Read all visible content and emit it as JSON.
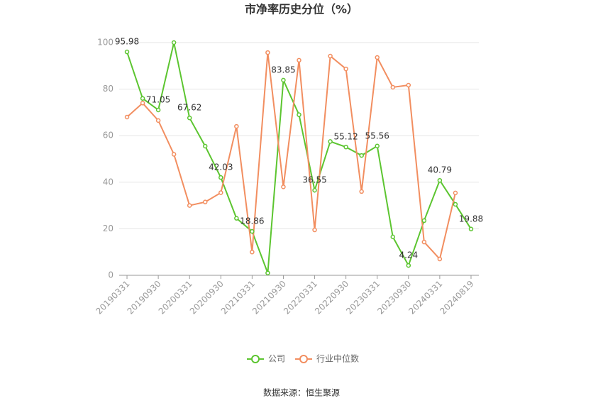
{
  "chart_data": {
    "type": "line",
    "title": "市净率历史分位（%）",
    "categories": [
      "20190331",
      null,
      "20190930",
      null,
      "20200331",
      null,
      "20200930",
      null,
      "20210331",
      null,
      "20210930",
      null,
      "20220331",
      null,
      "20220930",
      null,
      "20230331",
      null,
      "20230930",
      null,
      "20240331",
      null,
      "20240819"
    ],
    "series": [
      {
        "name": "公司",
        "color": "#5cc530",
        "values": [
          95.98,
          76,
          71.05,
          100,
          67.62,
          55.5,
          42.03,
          24.5,
          18.86,
          1,
          83.85,
          69,
          36.55,
          57.5,
          55.12,
          51.5,
          55.56,
          16.5,
          4.24,
          23.5,
          40.79,
          30.5,
          19.88
        ],
        "value_labels": [
          "95.98",
          null,
          "71.05",
          null,
          "67.62",
          null,
          "42.03",
          null,
          "18.86",
          null,
          "83.85",
          null,
          "36.55",
          null,
          "55.12",
          null,
          "55.56",
          null,
          "4.24",
          null,
          "40.79",
          null,
          "19.88"
        ]
      },
      {
        "name": "行业中位数",
        "color": "#f28e60",
        "values": [
          68,
          74,
          66.5,
          52,
          30,
          31.5,
          35.5,
          64,
          10,
          95.7,
          38,
          92.4,
          19.5,
          94.2,
          88.7,
          36,
          93.6,
          80.8,
          81.7,
          14.3,
          7,
          35.4,
          null
        ]
      }
    ],
    "ylim": [
      0,
      100
    ],
    "yticks": [
      0,
      20,
      40,
      60,
      80,
      100
    ],
    "grid": true,
    "source": "数据来源：恒生聚源"
  }
}
